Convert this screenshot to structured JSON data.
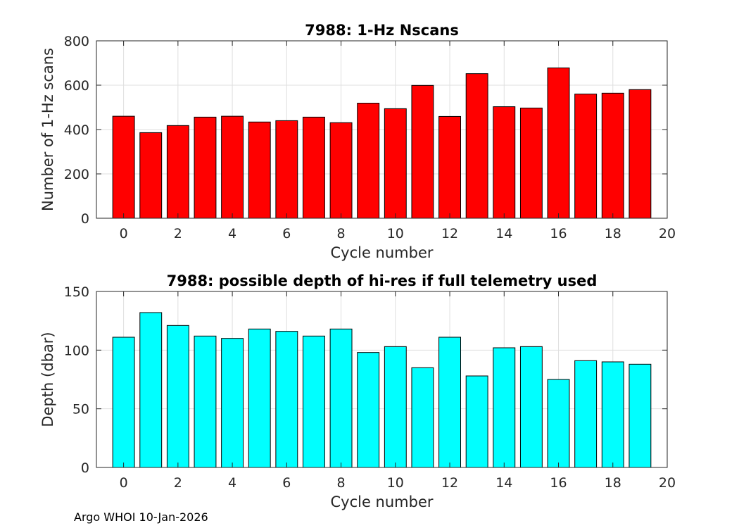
{
  "footer": "Argo WHOI 10-Jan-2026",
  "chart_data": [
    {
      "type": "bar",
      "title": "7988: 1-Hz Nscans",
      "xlabel": "Cycle number",
      "ylabel": "Number of 1-Hz scans",
      "x": [
        0,
        1,
        2,
        3,
        4,
        5,
        6,
        7,
        8,
        9,
        10,
        11,
        12,
        13,
        14,
        15,
        16,
        17,
        18,
        19
      ],
      "values": [
        460,
        386,
        418,
        456,
        460,
        434,
        440,
        456,
        431,
        519,
        494,
        599,
        459,
        652,
        503,
        497,
        678,
        560,
        564,
        580
      ],
      "xlim": [
        -1,
        20
      ],
      "ylim": [
        0,
        800
      ],
      "xticks": [
        0,
        2,
        4,
        6,
        8,
        10,
        12,
        14,
        16,
        18,
        20
      ],
      "yticks": [
        0,
        200,
        400,
        600,
        800
      ],
      "color": "#ff0000",
      "grid": true
    },
    {
      "type": "bar",
      "title": "7988: possible depth of hi-res if full telemetry used",
      "xlabel": "Cycle number",
      "ylabel": "Depth (dbar)",
      "x": [
        0,
        1,
        2,
        3,
        4,
        5,
        6,
        7,
        8,
        9,
        10,
        11,
        12,
        13,
        14,
        15,
        16,
        17,
        18,
        19
      ],
      "values": [
        111,
        132,
        121,
        112,
        110,
        118,
        116,
        112,
        118,
        98,
        103,
        85,
        111,
        78,
        102,
        103,
        75,
        91,
        90,
        88
      ],
      "xlim": [
        -1,
        20
      ],
      "ylim": [
        0,
        150
      ],
      "xticks": [
        0,
        2,
        4,
        6,
        8,
        10,
        12,
        14,
        16,
        18,
        20
      ],
      "yticks": [
        0,
        50,
        100,
        150
      ],
      "color": "#00ffff",
      "grid": true
    }
  ]
}
